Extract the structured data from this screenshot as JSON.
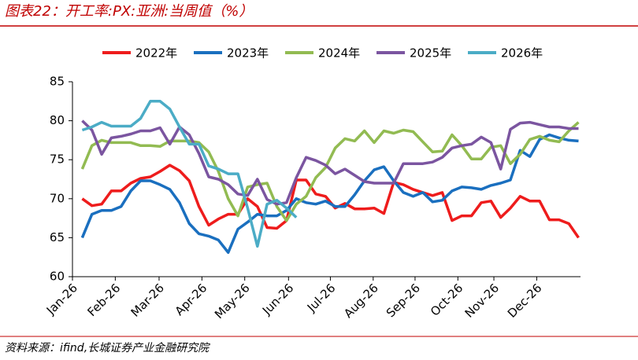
{
  "chart_data": {
    "type": "line",
    "title": "图表22：开工率:PX:亚洲:当周值（%）",
    "source": "资料来源：ifind,长城证券产业金融研究院",
    "x": [
      1,
      2,
      3,
      4,
      5,
      6,
      7,
      8,
      9,
      10,
      11,
      12,
      13,
      14,
      15,
      16,
      17,
      18,
      19,
      20,
      21,
      22,
      23,
      24,
      25,
      26,
      27,
      28,
      29,
      30,
      31,
      32,
      33,
      34,
      35,
      36,
      37,
      38,
      39,
      40,
      41,
      42,
      43,
      44,
      45,
      46,
      47,
      48,
      49,
      50,
      51,
      52
    ],
    "xlim": [
      0,
      52.2
    ],
    "xticks": [
      {
        "value": 0,
        "label": "Jan-26"
      },
      {
        "value": 4.4,
        "label": "Feb-26"
      },
      {
        "value": 8.9,
        "label": "Mar-26"
      },
      {
        "value": 13.3,
        "label": "Apr-26"
      },
      {
        "value": 17.7,
        "label": "May-26"
      },
      {
        "value": 22.2,
        "label": "Jun-26"
      },
      {
        "value": 26.5,
        "label": "Jul-26"
      },
      {
        "value": 30.9,
        "label": "Aug-26"
      },
      {
        "value": 35.2,
        "label": "Sep-26"
      },
      {
        "value": 39.6,
        "label": "Oct-26"
      },
      {
        "value": 43.3,
        "label": "Nov-26"
      },
      {
        "value": 47.7,
        "label": "Dec-26"
      }
    ],
    "ylim": [
      60,
      85
    ],
    "yticks": [
      60,
      65,
      70,
      75,
      80,
      85
    ],
    "series": [
      {
        "name": "2022年",
        "color": "#ee1c1c",
        "values": [
          70.0,
          69.1,
          69.3,
          71.0,
          71.0,
          72.0,
          72.6,
          72.8,
          73.5,
          74.3,
          73.6,
          72.3,
          69.0,
          66.6,
          67.4,
          68.0,
          68.0,
          70.0,
          69.0,
          66.3,
          66.2,
          67.2,
          72.4,
          72.4,
          70.6,
          70.3,
          68.8,
          69.4,
          68.7,
          68.7,
          68.8,
          68.1,
          72.1,
          71.8,
          71.2,
          70.8,
          70.4,
          70.8,
          67.2,
          67.8,
          67.8,
          69.5,
          69.7,
          67.6,
          68.8,
          70.3,
          69.7,
          69.7,
          67.3,
          67.3,
          66.8,
          65.0
        ]
      },
      {
        "name": "2023年",
        "color": "#1a6fbf",
        "values": [
          65.0,
          68.0,
          68.5,
          68.5,
          69.0,
          71.0,
          72.3,
          72.3,
          71.8,
          71.2,
          69.5,
          66.8,
          65.5,
          65.2,
          64.7,
          63.1,
          66.1,
          67.0,
          68.0,
          67.8,
          67.8,
          68.5,
          70.0,
          69.5,
          69.3,
          69.7,
          69.0,
          69.0,
          70.5,
          72.3,
          73.7,
          74.1,
          72.3,
          70.8,
          70.3,
          70.8,
          69.6,
          69.8,
          71.0,
          71.5,
          71.4,
          71.2,
          71.7,
          72.0,
          72.4,
          76.2,
          75.4,
          77.6,
          78.2,
          77.8,
          77.5,
          77.4
        ]
      },
      {
        "name": "2024年",
        "color": "#92bb52",
        "values": [
          73.8,
          76.8,
          77.5,
          77.2,
          77.2,
          77.2,
          76.8,
          76.8,
          76.7,
          77.4,
          77.4,
          77.4,
          77.2,
          76.0,
          73.5,
          70.0,
          67.8,
          71.5,
          71.8,
          72.0,
          69.0,
          67.2,
          69.3,
          70.3,
          72.7,
          74.0,
          76.5,
          77.7,
          77.4,
          78.7,
          77.2,
          78.7,
          78.4,
          78.8,
          78.6,
          77.3,
          76.0,
          76.1,
          78.2,
          76.8,
          75.1,
          75.1,
          76.6,
          76.8,
          74.5,
          75.7,
          77.6,
          78.0,
          77.5,
          77.3,
          78.7,
          79.8
        ]
      },
      {
        "name": "2025年",
        "color": "#7b55a0",
        "values": [
          80.0,
          78.8,
          75.7,
          77.8,
          78.0,
          78.3,
          78.7,
          78.7,
          79.1,
          77.0,
          79.2,
          78.2,
          75.8,
          72.8,
          72.5,
          71.8,
          70.6,
          70.4,
          72.5,
          69.9,
          69.3,
          69.5,
          72.7,
          75.3,
          74.9,
          74.3,
          73.2,
          73.8,
          73.0,
          72.2,
          72.0,
          72.0,
          72.0,
          74.5,
          74.5,
          74.5,
          74.7,
          75.3,
          76.5,
          76.8,
          77.0,
          77.9,
          77.2,
          73.8,
          78.9,
          79.7,
          79.8,
          79.5,
          79.2,
          79.2,
          79.0,
          79.0
        ]
      },
      {
        "name": "2026年",
        "color": "#4bacc6",
        "values": [
          78.8,
          79.2,
          79.8,
          79.3,
          79.3,
          79.3,
          80.3,
          82.5,
          82.5,
          81.5,
          79.2,
          77.0,
          77.0,
          74.2,
          73.8,
          73.2,
          73.2,
          68.8,
          63.9,
          69.3,
          69.8,
          68.8,
          67.6,
          null,
          null,
          null,
          null,
          null,
          null,
          null,
          null,
          null,
          null,
          null,
          null,
          null,
          null,
          null,
          null,
          null,
          null,
          null,
          null,
          null,
          null,
          null,
          null,
          null,
          null,
          null,
          null,
          null
        ]
      }
    ]
  }
}
